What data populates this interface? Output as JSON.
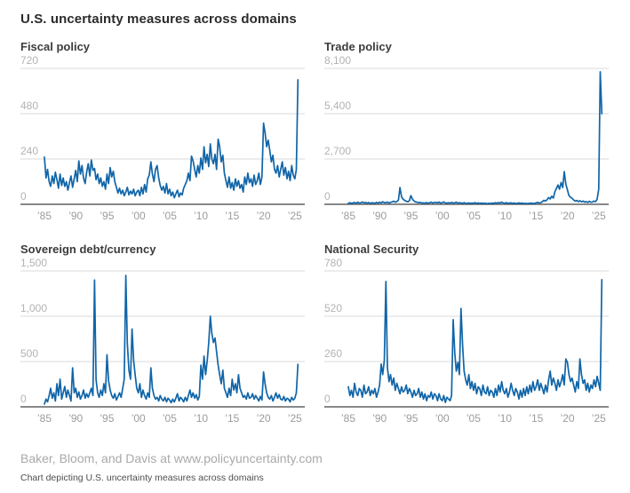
{
  "page": {
    "title": "U.S. uncertainty measures across domains",
    "source": "Baker, Bloom, and Davis at www.policyuncertainty.com",
    "caption": "Chart depicting U.S. uncertainty measures across domains"
  },
  "theme": {
    "line_color": "#1065a8",
    "grid_color": "#dadada",
    "zero_line_color": "#616161",
    "ytick_color": "#b3b3b3",
    "xtick_color": "#9c9c9c",
    "panel_title_color": "#3c3c3c"
  },
  "chart_data": [
    {
      "type": "line",
      "title": "Fiscal policy",
      "x_start": 1985,
      "x_step": 0.25,
      "xlim": [
        1985,
        2025.6
      ],
      "ylim": [
        0,
        720
      ],
      "grid": true,
      "legend": "none",
      "yticks": [
        0,
        240,
        480,
        720
      ],
      "ytick_labels": [
        "0",
        "240",
        "480",
        "720"
      ],
      "xticks": [
        1985,
        1990,
        1995,
        2000,
        2005,
        2010,
        2015,
        2020,
        2025
      ],
      "xtick_labels": [
        "’85",
        "’90",
        "’95",
        "’00",
        "’05",
        "’10",
        "’15",
        "’20",
        "’25"
      ],
      "values": [
        250,
        140,
        185,
        120,
        95,
        150,
        110,
        170,
        130,
        85,
        160,
        100,
        140,
        95,
        120,
        75,
        115,
        150,
        90,
        135,
        180,
        120,
        230,
        160,
        205,
        140,
        110,
        170,
        215,
        150,
        235,
        180,
        190,
        130,
        160,
        110,
        140,
        95,
        120,
        80,
        160,
        110,
        195,
        145,
        175,
        120,
        90,
        60,
        85,
        55,
        75,
        45,
        65,
        90,
        50,
        70,
        55,
        80,
        45,
        65,
        75,
        45,
        90,
        55,
        105,
        65,
        135,
        155,
        225,
        160,
        120,
        185,
        205,
        140,
        100,
        75,
        95,
        60,
        110,
        55,
        80,
        45,
        65,
        35,
        55,
        75,
        40,
        60,
        50,
        85,
        105,
        125,
        165,
        125,
        255,
        230,
        185,
        145,
        205,
        165,
        245,
        185,
        305,
        220,
        265,
        200,
        320,
        240,
        215,
        265,
        185,
        345,
        305,
        225,
        260,
        165,
        125,
        90,
        145,
        85,
        115,
        75,
        135,
        95,
        125,
        85,
        105,
        65,
        145,
        105,
        165,
        115,
        135,
        95,
        155,
        105,
        125,
        165,
        105,
        145,
        430,
        380,
        305,
        340,
        285,
        225,
        260,
        185,
        165,
        205,
        145,
        185,
        225,
        155,
        195,
        135,
        175,
        125,
        205,
        155,
        135,
        185,
        660
      ]
    },
    {
      "type": "line",
      "title": "Trade policy",
      "x_start": 1985,
      "x_step": 0.25,
      "xlim": [
        1985,
        2025.6
      ],
      "ylim": [
        0,
        8100
      ],
      "grid": true,
      "legend": "none",
      "yticks": [
        0,
        2700,
        5400,
        8100
      ],
      "ytick_labels": [
        "0",
        "2,700",
        "5,400",
        "8,100"
      ],
      "xticks": [
        1985,
        1990,
        1995,
        2000,
        2005,
        2010,
        2015,
        2020,
        2025
      ],
      "xtick_labels": [
        "’85",
        "’90",
        "’95",
        "’00",
        "’05",
        "’10",
        "’15",
        "’20",
        "’25"
      ],
      "values": [
        60,
        95,
        50,
        85,
        105,
        60,
        125,
        75,
        90,
        145,
        80,
        110,
        70,
        105,
        60,
        90,
        85,
        55,
        115,
        70,
        125,
        85,
        155,
        100,
        95,
        135,
        70,
        115,
        145,
        185,
        125,
        165,
        250,
        1000,
        450,
        300,
        240,
        180,
        155,
        210,
        520,
        300,
        200,
        140,
        125,
        95,
        115,
        75,
        85,
        65,
        105,
        55,
        95,
        125,
        75,
        105,
        115,
        85,
        135,
        65,
        105,
        145,
        85,
        65,
        95,
        65,
        115,
        75,
        85,
        125,
        65,
        95,
        75,
        55,
        95,
        65,
        55,
        85,
        45,
        75,
        65,
        95,
        55,
        85,
        45,
        75,
        55,
        65,
        55,
        35,
        65,
        45,
        75,
        55,
        95,
        65,
        105,
        75,
        125,
        85,
        65,
        95,
        55,
        75,
        85,
        55,
        75,
        45,
        65,
        85,
        55,
        75,
        45,
        65,
        35,
        55,
        55,
        75,
        45,
        65,
        85,
        115,
        75,
        95,
        160,
        240,
        190,
        280,
        400,
        320,
        480,
        370,
        750,
        950,
        1150,
        900,
        1300,
        1000,
        1950,
        1200,
        850,
        520,
        420,
        360,
        260,
        190,
        230,
        160,
        210,
        150,
        190,
        130,
        160,
        110,
        180,
        120,
        140,
        190,
        160,
        300,
        900,
        7900,
        5400
      ]
    },
    {
      "type": "line",
      "title": "Sovereign debt/currency",
      "x_start": 1985,
      "x_step": 0.25,
      "xlim": [
        1985,
        2025.6
      ],
      "ylim": [
        0,
        1500
      ],
      "grid": true,
      "legend": "none",
      "yticks": [
        0,
        500,
        1000,
        1500
      ],
      "ytick_labels": [
        "0",
        "500",
        "1,000",
        "1,500"
      ],
      "xticks": [
        1985,
        1990,
        1995,
        2000,
        2005,
        2010,
        2015,
        2020,
        2025
      ],
      "xtick_labels": [
        "’85",
        "’90",
        "’95",
        "’00",
        "’05",
        "’10",
        "’15",
        "’20",
        "’25"
      ],
      "values": [
        30,
        85,
        55,
        125,
        205,
        95,
        155,
        65,
        255,
        125,
        305,
        85,
        155,
        225,
        105,
        185,
        125,
        65,
        430,
        155,
        205,
        105,
        165,
        85,
        125,
        185,
        95,
        145,
        105,
        155,
        205,
        125,
        1400,
        300,
        155,
        105,
        185,
        125,
        255,
        155,
        575,
        285,
        185,
        125,
        95,
        145,
        75,
        115,
        155,
        105,
        205,
        305,
        1450,
        700,
        405,
        305,
        860,
        510,
        355,
        205,
        155,
        255,
        105,
        185,
        125,
        85,
        155,
        105,
        430,
        205,
        125,
        85,
        105,
        65,
        125,
        85,
        65,
        105,
        55,
        95,
        75,
        45,
        85,
        55,
        95,
        145,
        65,
        105,
        85,
        55,
        105,
        65,
        125,
        185,
        105,
        155,
        95,
        135,
        75,
        115,
        460,
        305,
        560,
        355,
        510,
        705,
        1000,
        810,
        710,
        760,
        610,
        460,
        355,
        255,
        405,
        205,
        155,
        105,
        205,
        125,
        305,
        185,
        255,
        155,
        355,
        205,
        155,
        105,
        125,
        85,
        155,
        95,
        105,
        145,
        85,
        125,
        95,
        65,
        115,
        75,
        385,
        255,
        155,
        105,
        85,
        125,
        65,
        105,
        155,
        95,
        135,
        85,
        75,
        115,
        65,
        95,
        85,
        55,
        105,
        75,
        95,
        155,
        470
      ]
    },
    {
      "type": "line",
      "title": "National Security",
      "x_start": 1985,
      "x_step": 0.25,
      "xlim": [
        1985,
        2025.6
      ],
      "ylim": [
        0,
        780
      ],
      "grid": true,
      "legend": "none",
      "yticks": [
        0,
        260,
        520,
        780
      ],
      "ytick_labels": [
        "0",
        "260",
        "520",
        "780"
      ],
      "xticks": [
        1985,
        1990,
        1995,
        2000,
        2005,
        2010,
        2015,
        2020,
        2025
      ],
      "xtick_labels": [
        "’85",
        "’90",
        "’95",
        "’00",
        "’05",
        "’10",
        "’15",
        "’20",
        "’25"
      ],
      "values": [
        115,
        65,
        95,
        55,
        135,
        85,
        65,
        105,
        95,
        55,
        125,
        75,
        85,
        115,
        65,
        95,
        75,
        105,
        55,
        85,
        125,
        245,
        185,
        265,
        720,
        225,
        145,
        185,
        125,
        165,
        95,
        135,
        105,
        75,
        115,
        85,
        95,
        125,
        75,
        105,
        85,
        55,
        95,
        65,
        75,
        105,
        55,
        85,
        45,
        75,
        35,
        65,
        55,
        85,
        45,
        75,
        65,
        35,
        75,
        45,
        35,
        65,
        25,
        55,
        45,
        35,
        65,
        500,
        310,
        205,
        255,
        185,
        565,
        355,
        205,
        155,
        125,
        185,
        105,
        145,
        95,
        135,
        75,
        115,
        105,
        65,
        125,
        85,
        75,
        115,
        65,
        95,
        85,
        55,
        105,
        65,
        125,
        85,
        145,
        95,
        75,
        105,
        55,
        85,
        135,
        95,
        65,
        105,
        85,
        45,
        95,
        55,
        105,
        65,
        115,
        75,
        125,
        85,
        145,
        95,
        115,
        155,
        95,
        135,
        105,
        75,
        125,
        85,
        155,
        205,
        125,
        165,
        135,
        95,
        155,
        115,
        145,
        185,
        125,
        275,
        255,
        185,
        145,
        165,
        125,
        85,
        145,
        105,
        275,
        185,
        135,
        155,
        95,
        135,
        85,
        125,
        105,
        155,
        115,
        175,
        135,
        95,
        730
      ]
    }
  ]
}
